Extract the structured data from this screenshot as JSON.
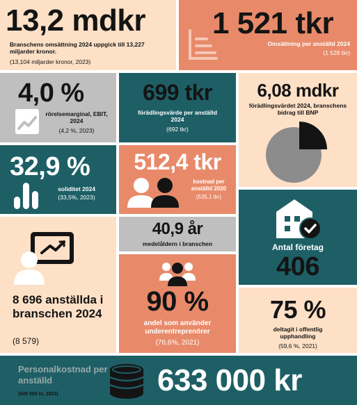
{
  "tiles": {
    "omsattning_bransch": {
      "value": "13,2 mdkr",
      "label": "Branschens omsättning 2024 uppgick till 13,227 miljarder kronor.",
      "sub": "(13,104 miljarder kronor, 2023)"
    },
    "omsattning_anstalld": {
      "value": "1 521 tkr",
      "label": "Omsättning per anställd 2024",
      "sub": "(1 528 tkr)",
      "icon": "chart-lines-icon"
    },
    "rorelsemarginal": {
      "value": "4,0 %",
      "label": "rörelsemarginal, EBIT, 2024",
      "sub": "(4,2 %, 2023)",
      "icon": "trend-up-icon"
    },
    "foradlingsvarde": {
      "value": "699 tkr",
      "label": "förädlingsvärde per anställd 2024",
      "sub": "(692 tkr)"
    },
    "bnp": {
      "value": "6,08 mdkr",
      "label": "förädlingsvärdet 2024, branschens bidrag till BNP",
      "icon": "pie-chart-icon"
    },
    "soliditet": {
      "value": "32,9 %",
      "label": "soliditet 2024",
      "sub": "(33,5%, 2023)",
      "icon": "bar-chart-icon"
    },
    "kostnad": {
      "value": "512,4 tkr",
      "label": "kostnad per anställd 2020",
      "sub": "(535,1 tkr)",
      "icon": "people-icon"
    },
    "anstallda": {
      "label": "8 696 anställda i branschen 2024",
      "sub": "(8 579)",
      "icon": "presenter-icon"
    },
    "medelalder": {
      "value": "40,9 år",
      "label": "medelåldern i branschen"
    },
    "foretag": {
      "label": "Antal företag",
      "value": "406",
      "icon": "building-check-icon"
    },
    "underentreprenorer": {
      "value": "90 %",
      "label": "andel som använder underentreprenörer",
      "sub": "(76,6%, 2021)",
      "icon": "group-icon"
    },
    "upphandling": {
      "value": "75 %",
      "label": "deltagit i offentlig upphandling",
      "sub": "(59,6 %, 2021)"
    },
    "personalkostnad": {
      "label": "Personalkostnad per anställd",
      "sub": "(628 000 kr, 2023)",
      "value": "633 000 kr",
      "icon": "coins-icon"
    }
  },
  "colors": {
    "peach": "#fde0c6",
    "coral": "#e88a6a",
    "teal": "#1e5f66",
    "grey": "#bfbfbf",
    "dark": "#141414"
  }
}
